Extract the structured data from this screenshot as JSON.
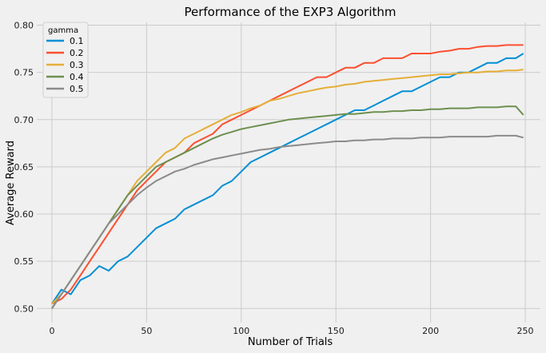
{
  "chart_data": {
    "type": "line",
    "title": "Performance of the EXP3 Algorithm",
    "xlabel": "Number of Trials",
    "ylabel": "Average Reward",
    "xlim": [
      -8,
      258
    ],
    "ylim": [
      0.485,
      0.803
    ],
    "xticks": [
      0,
      50,
      100,
      150,
      200,
      250
    ],
    "yticks": [
      0.5,
      0.55,
      0.6,
      0.65,
      0.7,
      0.75,
      0.8
    ],
    "grid": true,
    "legend": {
      "title": "gamma",
      "position": "top-left"
    },
    "series": [
      {
        "name": "0.1",
        "color": "#008fd5",
        "points": [
          [
            0,
            0.505
          ],
          [
            5,
            0.52
          ],
          [
            10,
            0.515
          ],
          [
            15,
            0.53
          ],
          [
            20,
            0.535
          ],
          [
            25,
            0.545
          ],
          [
            30,
            0.54
          ],
          [
            35,
            0.55
          ],
          [
            40,
            0.555
          ],
          [
            45,
            0.565
          ],
          [
            50,
            0.575
          ],
          [
            55,
            0.585
          ],
          [
            60,
            0.59
          ],
          [
            65,
            0.595
          ],
          [
            70,
            0.605
          ],
          [
            75,
            0.61
          ],
          [
            80,
            0.615
          ],
          [
            85,
            0.62
          ],
          [
            90,
            0.63
          ],
          [
            95,
            0.635
          ],
          [
            100,
            0.645
          ],
          [
            105,
            0.655
          ],
          [
            110,
            0.66
          ],
          [
            115,
            0.665
          ],
          [
            120,
            0.67
          ],
          [
            125,
            0.675
          ],
          [
            130,
            0.68
          ],
          [
            135,
            0.685
          ],
          [
            140,
            0.69
          ],
          [
            145,
            0.695
          ],
          [
            150,
            0.7
          ],
          [
            155,
            0.705
          ],
          [
            160,
            0.71
          ],
          [
            165,
            0.71
          ],
          [
            170,
            0.715
          ],
          [
            175,
            0.72
          ],
          [
            180,
            0.725
          ],
          [
            185,
            0.73
          ],
          [
            190,
            0.73
          ],
          [
            195,
            0.735
          ],
          [
            200,
            0.74
          ],
          [
            205,
            0.745
          ],
          [
            210,
            0.745
          ],
          [
            215,
            0.75
          ],
          [
            220,
            0.75
          ],
          [
            225,
            0.755
          ],
          [
            230,
            0.76
          ],
          [
            235,
            0.76
          ],
          [
            240,
            0.765
          ],
          [
            245,
            0.765
          ],
          [
            249,
            0.77
          ]
        ]
      },
      {
        "name": "0.2",
        "color": "#fc4f30",
        "points": [
          [
            0,
            0.505
          ],
          [
            5,
            0.51
          ],
          [
            10,
            0.52
          ],
          [
            15,
            0.535
          ],
          [
            20,
            0.55
          ],
          [
            25,
            0.565
          ],
          [
            30,
            0.58
          ],
          [
            35,
            0.595
          ],
          [
            40,
            0.61
          ],
          [
            45,
            0.625
          ],
          [
            50,
            0.635
          ],
          [
            55,
            0.645
          ],
          [
            60,
            0.655
          ],
          [
            65,
            0.66
          ],
          [
            70,
            0.665
          ],
          [
            75,
            0.675
          ],
          [
            80,
            0.68
          ],
          [
            85,
            0.685
          ],
          [
            90,
            0.695
          ],
          [
            95,
            0.7
          ],
          [
            100,
            0.705
          ],
          [
            105,
            0.71
          ],
          [
            110,
            0.715
          ],
          [
            115,
            0.72
          ],
          [
            120,
            0.725
          ],
          [
            125,
            0.73
          ],
          [
            130,
            0.735
          ],
          [
            135,
            0.74
          ],
          [
            140,
            0.745
          ],
          [
            145,
            0.745
          ],
          [
            150,
            0.75
          ],
          [
            155,
            0.755
          ],
          [
            160,
            0.755
          ],
          [
            165,
            0.76
          ],
          [
            170,
            0.76
          ],
          [
            175,
            0.765
          ],
          [
            180,
            0.765
          ],
          [
            185,
            0.765
          ],
          [
            190,
            0.77
          ],
          [
            195,
            0.77
          ],
          [
            200,
            0.77
          ],
          [
            205,
            0.772
          ],
          [
            210,
            0.773
          ],
          [
            215,
            0.775
          ],
          [
            220,
            0.775
          ],
          [
            225,
            0.777
          ],
          [
            230,
            0.778
          ],
          [
            235,
            0.778
          ],
          [
            240,
            0.779
          ],
          [
            245,
            0.779
          ],
          [
            249,
            0.779
          ]
        ]
      },
      {
        "name": "0.3",
        "color": "#e5ae38",
        "points": [
          [
            0,
            0.505
          ],
          [
            5,
            0.515
          ],
          [
            10,
            0.53
          ],
          [
            15,
            0.545
          ],
          [
            20,
            0.56
          ],
          [
            25,
            0.575
          ],
          [
            30,
            0.59
          ],
          [
            35,
            0.605
          ],
          [
            40,
            0.62
          ],
          [
            45,
            0.635
          ],
          [
            50,
            0.645
          ],
          [
            55,
            0.655
          ],
          [
            60,
            0.665
          ],
          [
            65,
            0.67
          ],
          [
            70,
            0.68
          ],
          [
            75,
            0.685
          ],
          [
            80,
            0.69
          ],
          [
            85,
            0.695
          ],
          [
            90,
            0.7
          ],
          [
            95,
            0.705
          ],
          [
            100,
            0.708
          ],
          [
            105,
            0.712
          ],
          [
            110,
            0.715
          ],
          [
            115,
            0.72
          ],
          [
            120,
            0.722
          ],
          [
            125,
            0.725
          ],
          [
            130,
            0.728
          ],
          [
            135,
            0.73
          ],
          [
            140,
            0.732
          ],
          [
            145,
            0.734
          ],
          [
            150,
            0.735
          ],
          [
            155,
            0.737
          ],
          [
            160,
            0.738
          ],
          [
            165,
            0.74
          ],
          [
            170,
            0.741
          ],
          [
            175,
            0.742
          ],
          [
            180,
            0.743
          ],
          [
            185,
            0.744
          ],
          [
            190,
            0.745
          ],
          [
            195,
            0.746
          ],
          [
            200,
            0.747
          ],
          [
            205,
            0.748
          ],
          [
            210,
            0.748
          ],
          [
            215,
            0.749
          ],
          [
            220,
            0.75
          ],
          [
            225,
            0.75
          ],
          [
            230,
            0.751
          ],
          [
            235,
            0.751
          ],
          [
            240,
            0.752
          ],
          [
            245,
            0.752
          ],
          [
            249,
            0.753
          ]
        ]
      },
      {
        "name": "0.4",
        "color": "#6d904f",
        "points": [
          [
            0,
            0.5
          ],
          [
            5,
            0.515
          ],
          [
            10,
            0.53
          ],
          [
            15,
            0.545
          ],
          [
            20,
            0.56
          ],
          [
            25,
            0.575
          ],
          [
            30,
            0.59
          ],
          [
            35,
            0.605
          ],
          [
            40,
            0.62
          ],
          [
            45,
            0.63
          ],
          [
            50,
            0.64
          ],
          [
            55,
            0.65
          ],
          [
            60,
            0.655
          ],
          [
            65,
            0.66
          ],
          [
            70,
            0.665
          ],
          [
            75,
            0.67
          ],
          [
            80,
            0.675
          ],
          [
            85,
            0.68
          ],
          [
            90,
            0.684
          ],
          [
            95,
            0.687
          ],
          [
            100,
            0.69
          ],
          [
            105,
            0.692
          ],
          [
            110,
            0.694
          ],
          [
            115,
            0.696
          ],
          [
            120,
            0.698
          ],
          [
            125,
            0.7
          ],
          [
            130,
            0.701
          ],
          [
            135,
            0.702
          ],
          [
            140,
            0.703
          ],
          [
            145,
            0.704
          ],
          [
            150,
            0.705
          ],
          [
            155,
            0.706
          ],
          [
            160,
            0.706
          ],
          [
            165,
            0.707
          ],
          [
            170,
            0.708
          ],
          [
            175,
            0.708
          ],
          [
            180,
            0.709
          ],
          [
            185,
            0.709
          ],
          [
            190,
            0.71
          ],
          [
            195,
            0.71
          ],
          [
            200,
            0.711
          ],
          [
            205,
            0.711
          ],
          [
            210,
            0.712
          ],
          [
            215,
            0.712
          ],
          [
            220,
            0.712
          ],
          [
            225,
            0.713
          ],
          [
            230,
            0.713
          ],
          [
            235,
            0.713
          ],
          [
            240,
            0.714
          ],
          [
            245,
            0.714
          ],
          [
            249,
            0.705
          ]
        ]
      },
      {
        "name": "0.5",
        "color": "#8b8b8b",
        "points": [
          [
            0,
            0.5
          ],
          [
            5,
            0.515
          ],
          [
            10,
            0.53
          ],
          [
            15,
            0.545
          ],
          [
            20,
            0.56
          ],
          [
            25,
            0.575
          ],
          [
            30,
            0.59
          ],
          [
            35,
            0.6
          ],
          [
            40,
            0.61
          ],
          [
            45,
            0.62
          ],
          [
            50,
            0.628
          ],
          [
            55,
            0.635
          ],
          [
            60,
            0.64
          ],
          [
            65,
            0.645
          ],
          [
            70,
            0.648
          ],
          [
            75,
            0.652
          ],
          [
            80,
            0.655
          ],
          [
            85,
            0.658
          ],
          [
            90,
            0.66
          ],
          [
            95,
            0.662
          ],
          [
            100,
            0.664
          ],
          [
            105,
            0.666
          ],
          [
            110,
            0.668
          ],
          [
            115,
            0.669
          ],
          [
            120,
            0.671
          ],
          [
            125,
            0.672
          ],
          [
            130,
            0.673
          ],
          [
            135,
            0.674
          ],
          [
            140,
            0.675
          ],
          [
            145,
            0.676
          ],
          [
            150,
            0.677
          ],
          [
            155,
            0.677
          ],
          [
            160,
            0.678
          ],
          [
            165,
            0.678
          ],
          [
            170,
            0.679
          ],
          [
            175,
            0.679
          ],
          [
            180,
            0.68
          ],
          [
            185,
            0.68
          ],
          [
            190,
            0.68
          ],
          [
            195,
            0.681
          ],
          [
            200,
            0.681
          ],
          [
            205,
            0.681
          ],
          [
            210,
            0.682
          ],
          [
            215,
            0.682
          ],
          [
            220,
            0.682
          ],
          [
            225,
            0.682
          ],
          [
            230,
            0.682
          ],
          [
            235,
            0.683
          ],
          [
            240,
            0.683
          ],
          [
            245,
            0.683
          ],
          [
            249,
            0.681
          ]
        ]
      }
    ]
  }
}
